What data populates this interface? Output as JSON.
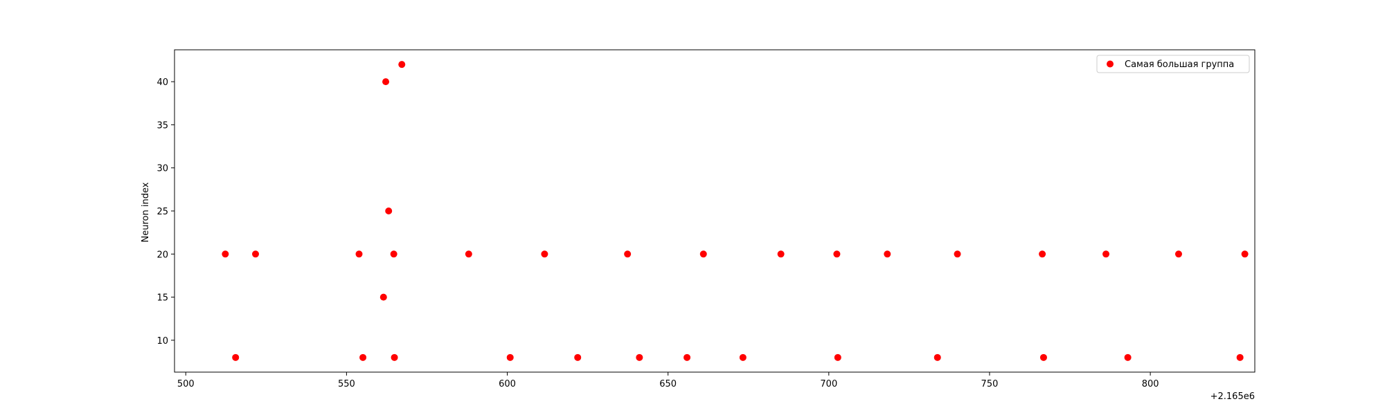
{
  "chart_data": {
    "type": "scatter",
    "title": "",
    "xlabel": "",
    "ylabel": "Neuron index",
    "x_offset_label": "+2.165e6",
    "xlim": [
      496.5,
      832.5
    ],
    "ylim": [
      6.3,
      43.7
    ],
    "x_ticks": [
      500,
      550,
      600,
      650,
      700,
      750,
      800
    ],
    "y_ticks": [
      10,
      15,
      20,
      25,
      30,
      35,
      40
    ],
    "grid": false,
    "legend_position": "top-right",
    "series": [
      {
        "name": "Самая большая группа",
        "color": "#ff0000",
        "points": [
          {
            "x": 512.3,
            "y": 20
          },
          {
            "x": 515.5,
            "y": 8
          },
          {
            "x": 521.7,
            "y": 20
          },
          {
            "x": 553.9,
            "y": 20
          },
          {
            "x": 555.1,
            "y": 8
          },
          {
            "x": 561.5,
            "y": 15
          },
          {
            "x": 562.2,
            "y": 40
          },
          {
            "x": 563.1,
            "y": 25
          },
          {
            "x": 564.7,
            "y": 20
          },
          {
            "x": 564.9,
            "y": 8
          },
          {
            "x": 567.2,
            "y": 42
          },
          {
            "x": 588.0,
            "y": 20
          },
          {
            "x": 600.9,
            "y": 8
          },
          {
            "x": 611.6,
            "y": 20
          },
          {
            "x": 621.9,
            "y": 8
          },
          {
            "x": 637.4,
            "y": 20
          },
          {
            "x": 641.1,
            "y": 8
          },
          {
            "x": 655.9,
            "y": 8
          },
          {
            "x": 661.0,
            "y": 20
          },
          {
            "x": 673.3,
            "y": 8
          },
          {
            "x": 685.1,
            "y": 20
          },
          {
            "x": 702.5,
            "y": 20
          },
          {
            "x": 702.8,
            "y": 8
          },
          {
            "x": 718.2,
            "y": 20
          },
          {
            "x": 733.8,
            "y": 8
          },
          {
            "x": 740.0,
            "y": 20
          },
          {
            "x": 766.4,
            "y": 20
          },
          {
            "x": 766.8,
            "y": 8
          },
          {
            "x": 786.2,
            "y": 20
          },
          {
            "x": 793.0,
            "y": 8
          },
          {
            "x": 808.8,
            "y": 20
          },
          {
            "x": 827.9,
            "y": 8
          },
          {
            "x": 829.4,
            "y": 20
          }
        ]
      }
    ]
  }
}
